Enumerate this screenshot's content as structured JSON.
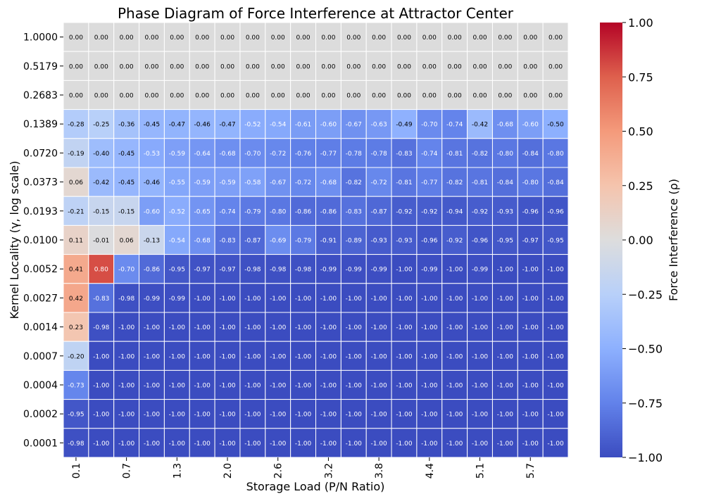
{
  "chart_data": {
    "type": "heatmap",
    "title": "Phase Diagram of Force Interference at Attractor Center",
    "xlabel": "Storage Load (P/N Ratio)",
    "ylabel": "Kernel Locality (γ, log scale)",
    "x_tick_labels": [
      "0.1",
      "0.7",
      "1.3",
      "2.0",
      "2.6",
      "3.2",
      "3.8",
      "4.4",
      "5.1",
      "5.7"
    ],
    "x_tick_columns": [
      0,
      2,
      4,
      6,
      8,
      10,
      12,
      14,
      16,
      18
    ],
    "y_labels": [
      "1.0000",
      "0.5179",
      "0.2683",
      "0.1389",
      "0.0720",
      "0.0373",
      "0.0193",
      "0.0100",
      "0.0052",
      "0.0027",
      "0.0014",
      "0.0007",
      "0.0004",
      "0.0002",
      "0.0001"
    ],
    "colorbar": {
      "label": "Force Interference (ρ)",
      "vmin": -1.0,
      "vmax": 1.0,
      "colormap": "coolwarm",
      "ticks": [
        "1.00",
        "0.75",
        "0.50",
        "0.25",
        "0.00",
        "−0.25",
        "−0.50",
        "−0.75",
        "−1.00"
      ],
      "tick_values": [
        1.0,
        0.75,
        0.5,
        0.25,
        0.0,
        -0.25,
        -0.5,
        -0.75,
        -1.0
      ]
    },
    "values": [
      [
        0.0,
        0.0,
        0.0,
        0.0,
        0.0,
        0.0,
        0.0,
        0.0,
        0.0,
        0.0,
        0.0,
        0.0,
        0.0,
        0.0,
        0.0,
        0.0,
        0.0,
        0.0,
        0.0,
        0.0
      ],
      [
        0.0,
        0.0,
        0.0,
        0.0,
        0.0,
        0.0,
        0.0,
        0.0,
        0.0,
        0.0,
        0.0,
        0.0,
        0.0,
        0.0,
        0.0,
        0.0,
        0.0,
        0.0,
        0.0,
        0.0
      ],
      [
        0.0,
        0.0,
        0.0,
        0.0,
        0.0,
        0.0,
        0.0,
        0.0,
        0.0,
        0.0,
        0.0,
        0.0,
        0.0,
        0.0,
        0.0,
        0.0,
        0.0,
        0.0,
        0.0,
        0.0
      ],
      [
        -0.28,
        -0.25,
        -0.36,
        -0.45,
        -0.47,
        -0.46,
        -0.47,
        -0.52,
        -0.54,
        -0.61,
        -0.6,
        -0.67,
        -0.63,
        -0.49,
        -0.7,
        -0.74,
        -0.42,
        -0.68,
        -0.6,
        -0.5
      ],
      [
        -0.19,
        -0.4,
        -0.45,
        -0.53,
        -0.59,
        -0.64,
        -0.68,
        -0.7,
        -0.72,
        -0.76,
        -0.77,
        -0.78,
        -0.78,
        -0.83,
        -0.74,
        -0.81,
        -0.82,
        -0.8,
        -0.84,
        -0.8
      ],
      [
        0.06,
        -0.42,
        -0.45,
        -0.46,
        -0.55,
        -0.59,
        -0.59,
        -0.58,
        -0.67,
        -0.72,
        -0.68,
        -0.82,
        -0.72,
        -0.81,
        -0.77,
        -0.82,
        -0.81,
        -0.84,
        -0.8,
        -0.84
      ],
      [
        -0.21,
        -0.15,
        -0.15,
        -0.6,
        -0.52,
        -0.65,
        -0.74,
        -0.79,
        -0.8,
        -0.86,
        -0.86,
        -0.83,
        -0.87,
        -0.92,
        -0.92,
        -0.94,
        -0.92,
        -0.93,
        -0.96,
        -0.96
      ],
      [
        0.11,
        -0.01,
        0.06,
        -0.13,
        -0.54,
        -0.68,
        -0.83,
        -0.87,
        -0.69,
        -0.79,
        -0.91,
        -0.89,
        -0.93,
        -0.93,
        -0.96,
        -0.92,
        -0.96,
        -0.95,
        -0.97,
        -0.95
      ],
      [
        0.41,
        0.8,
        -0.7,
        -0.86,
        -0.95,
        -0.97,
        -0.97,
        -0.98,
        -0.98,
        -0.98,
        -0.99,
        -0.99,
        -0.99,
        -1.0,
        -0.99,
        -1.0,
        -0.99,
        -1.0,
        -1.0,
        -1.0
      ],
      [
        0.42,
        -0.83,
        -0.98,
        -0.99,
        -0.99,
        -1.0,
        -1.0,
        -1.0,
        -1.0,
        -1.0,
        -1.0,
        -1.0,
        -1.0,
        -1.0,
        -1.0,
        -1.0,
        -1.0,
        -1.0,
        -1.0,
        -1.0
      ],
      [
        0.23,
        -0.98,
        -1.0,
        -1.0,
        -1.0,
        -1.0,
        -1.0,
        -1.0,
        -1.0,
        -1.0,
        -1.0,
        -1.0,
        -1.0,
        -1.0,
        -1.0,
        -1.0,
        -1.0,
        -1.0,
        -1.0,
        -1.0
      ],
      [
        -0.2,
        -1.0,
        -1.0,
        -1.0,
        -1.0,
        -1.0,
        -1.0,
        -1.0,
        -1.0,
        -1.0,
        -1.0,
        -1.0,
        -1.0,
        -1.0,
        -1.0,
        -1.0,
        -1.0,
        -1.0,
        -1.0,
        -1.0
      ],
      [
        -0.73,
        -1.0,
        -1.0,
        -1.0,
        -1.0,
        -1.0,
        -1.0,
        -1.0,
        -1.0,
        -1.0,
        -1.0,
        -1.0,
        -1.0,
        -1.0,
        -1.0,
        -1.0,
        -1.0,
        -1.0,
        -1.0,
        -1.0
      ],
      [
        -0.95,
        -1.0,
        -1.0,
        -1.0,
        -1.0,
        -1.0,
        -1.0,
        -1.0,
        -1.0,
        -1.0,
        -1.0,
        -1.0,
        -1.0,
        -1.0,
        -1.0,
        -1.0,
        -1.0,
        -1.0,
        -1.0,
        -1.0
      ],
      [
        -0.98,
        -1.0,
        -1.0,
        -1.0,
        -1.0,
        -1.0,
        -1.0,
        -1.0,
        -1.0,
        -1.0,
        -1.0,
        -1.0,
        -1.0,
        -1.0,
        -1.0,
        -1.0,
        -1.0,
        -1.0,
        -1.0,
        -1.0
      ]
    ],
    "nan_rows_color": "#dcdcdc",
    "annotation_format": "2 decimals",
    "grid": false,
    "legend": "colorbar-right"
  }
}
